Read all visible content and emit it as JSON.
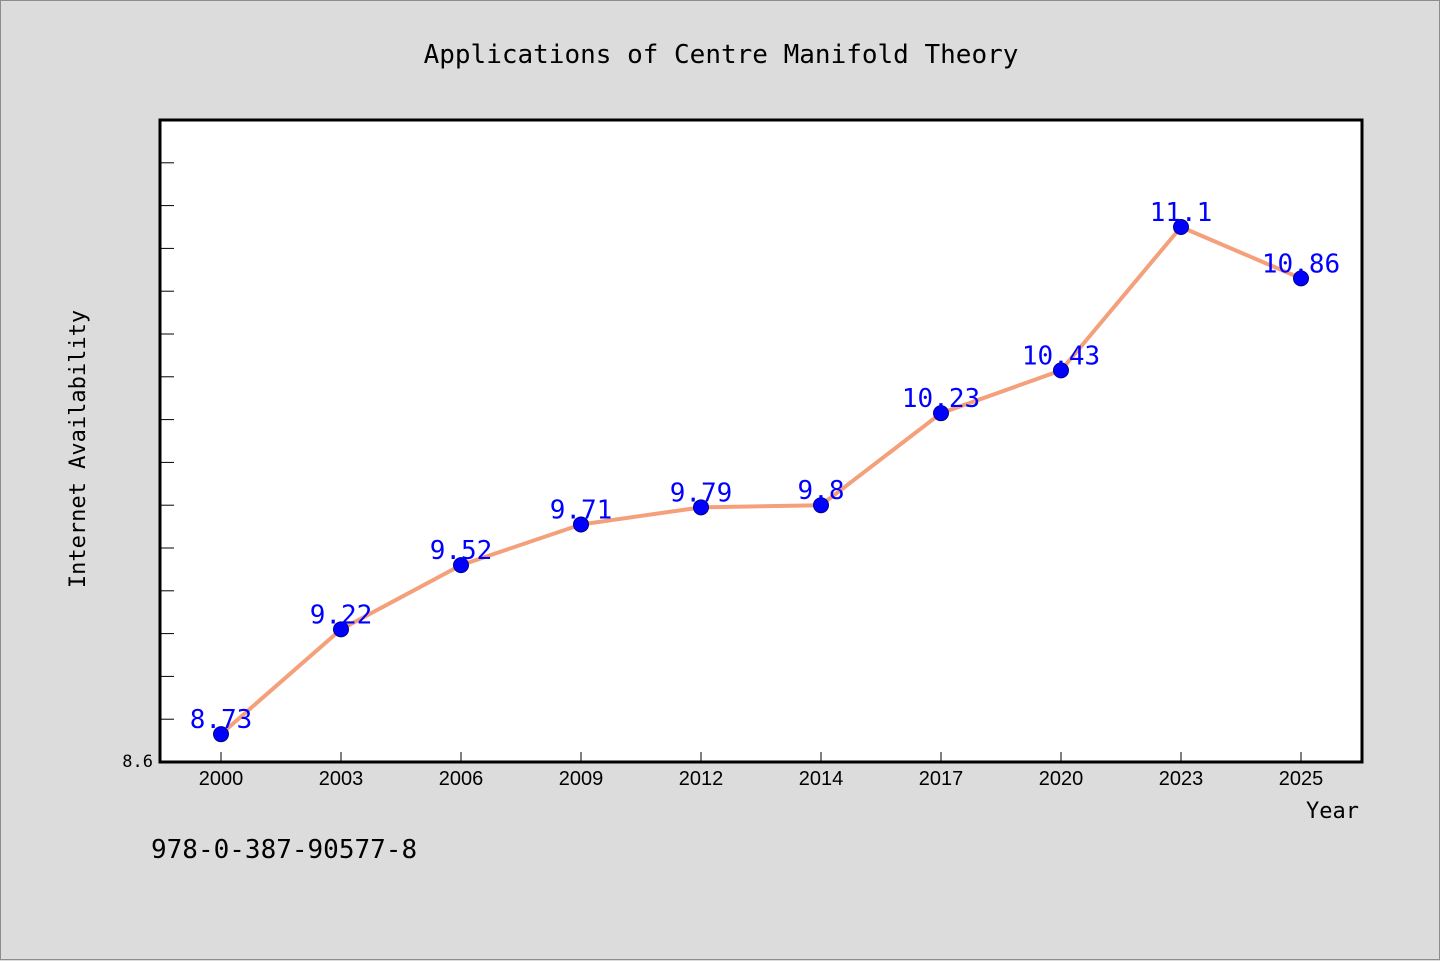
{
  "chart_data": {
    "type": "line",
    "title": "Applications of Centre Manifold Theory",
    "xlabel": "Year",
    "ylabel": "Internet Availability",
    "categories": [
      "2000",
      "2003",
      "2006",
      "2009",
      "2012",
      "2014",
      "2017",
      "2020",
      "2023",
      "2025"
    ],
    "series": [
      {
        "values": [
          8.73,
          9.22,
          9.52,
          9.71,
          9.79,
          9.8,
          10.23,
          10.43,
          11.1,
          10.86
        ]
      }
    ],
    "data_labels": [
      "8.73",
      "9.22",
      "9.52",
      "9.71",
      "9.79",
      "9.8",
      "10.23",
      "10.43",
      "11.1",
      "10.86"
    ],
    "ylim": [
      8.6,
      11.6
    ],
    "y_tick_labels": [
      "8.6"
    ],
    "grid": false,
    "colors": {
      "line": "#f4a07a",
      "marker": "#0000ff",
      "label": "#0000ff",
      "background": "#dcdcdc",
      "plot": "#ffffff"
    }
  },
  "footer": {
    "code": "978-0-387-90577-8"
  }
}
